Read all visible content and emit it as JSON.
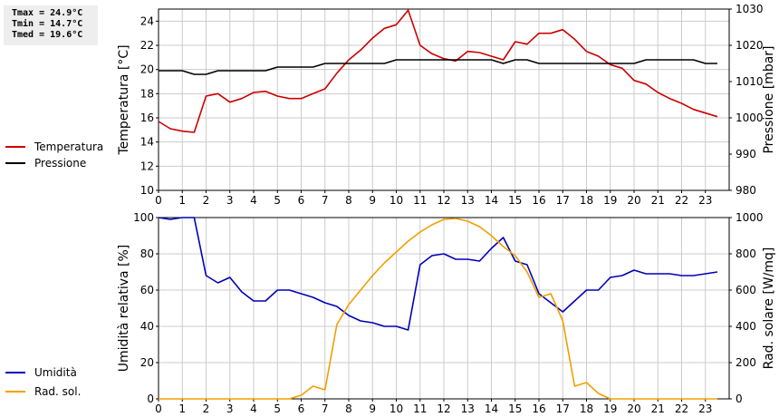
{
  "stats": {
    "tmax": "Tmax = 24.9°C",
    "tmin": "Tmin = 14.7°C",
    "tmed": "Tmed = 19.6°C"
  },
  "colors": {
    "temperature": "#cc0000",
    "pressure": "#000000",
    "humidity": "#0000bb",
    "radiation": "#f0a000",
    "grid": "#cccccc"
  },
  "chart_data": [
    {
      "type": "line",
      "grid": true,
      "legend_position": "left",
      "x_ticks": [
        "0",
        "1",
        "2",
        "3",
        "4",
        "5",
        "6",
        "7",
        "8",
        "9",
        "10",
        "11",
        "12",
        "13",
        "14",
        "15",
        "16",
        "17",
        "18",
        "19",
        "20",
        "21",
        "22",
        "23"
      ],
      "xlim": [
        0,
        24
      ],
      "ylabel": "Temperatura [°C]",
      "ylim": [
        10,
        25
      ],
      "y_ticks": [
        "10",
        "12",
        "14",
        "16",
        "18",
        "20",
        "22",
        "24"
      ],
      "y2label": "Pressione [mbar]",
      "y2lim": [
        980,
        1030
      ],
      "y2_ticks": [
        "980",
        "990",
        "1000",
        "1010",
        "1020",
        "1030"
      ],
      "series": [
        {
          "name": "Temperatura",
          "axis": "left",
          "x": [
            0,
            0.5,
            1,
            1.5,
            2,
            2.5,
            3,
            3.5,
            4,
            4.5,
            5,
            5.5,
            6,
            6.5,
            7,
            7.5,
            8,
            8.5,
            9,
            9.5,
            10,
            10.5,
            11,
            11.5,
            12,
            12.5,
            13,
            13.5,
            14,
            14.5,
            15,
            15.5,
            16,
            16.5,
            17,
            17.5,
            18,
            18.5,
            19,
            19.5,
            20,
            20.5,
            21,
            21.5,
            22,
            22.5,
            23,
            23.5
          ],
          "values": [
            15.7,
            15.1,
            14.9,
            14.8,
            17.8,
            18.0,
            17.3,
            17.6,
            18.1,
            18.2,
            17.8,
            17.6,
            17.6,
            18.0,
            18.4,
            19.7,
            20.8,
            21.6,
            22.6,
            23.4,
            23.7,
            24.9,
            22.0,
            21.3,
            20.9,
            20.7,
            21.5,
            21.4,
            21.1,
            20.8,
            22.3,
            22.1,
            23.0,
            23.0,
            23.3,
            22.5,
            21.5,
            21.1,
            20.4,
            20.1,
            19.1,
            18.8,
            18.1,
            17.6,
            17.2,
            16.7,
            16.4,
            16.1
          ]
        },
        {
          "name": "Pressione",
          "axis": "right",
          "x": [
            0,
            1,
            1.5,
            2,
            2.5,
            3,
            4,
            4.5,
            5,
            6,
            6.5,
            7,
            8,
            9,
            9.5,
            10,
            11,
            12,
            13,
            14,
            14.5,
            15,
            15.5,
            16,
            17,
            18,
            19,
            20,
            20.5,
            21,
            22,
            22.5,
            23,
            23.5
          ],
          "values": [
            1013,
            1013,
            1012,
            1012,
            1013,
            1013,
            1013,
            1013,
            1014,
            1014,
            1014,
            1015,
            1015,
            1015,
            1015,
            1016,
            1016,
            1016,
            1016,
            1016,
            1015,
            1016,
            1016,
            1015,
            1015,
            1015,
            1015,
            1015,
            1016,
            1016,
            1016,
            1016,
            1015,
            1015
          ]
        }
      ]
    },
    {
      "type": "line",
      "grid": true,
      "legend_position": "left",
      "x_ticks": [
        "0",
        "1",
        "2",
        "3",
        "4",
        "5",
        "6",
        "7",
        "8",
        "9",
        "10",
        "11",
        "12",
        "13",
        "14",
        "15",
        "16",
        "17",
        "18",
        "19",
        "20",
        "21",
        "22",
        "23"
      ],
      "xlim": [
        0,
        24
      ],
      "ylabel": "Umidità relativa [%]",
      "ylim": [
        0,
        100
      ],
      "y_ticks": [
        "0",
        "20",
        "40",
        "60",
        "80",
        "100"
      ],
      "y2label": "Rad. solare [W/mq]",
      "y2lim": [
        0,
        1000
      ],
      "y2_ticks": [
        "0",
        "200",
        "400",
        "600",
        "800",
        "1000"
      ],
      "series": [
        {
          "name": "Umidità",
          "axis": "left",
          "x": [
            0,
            0.5,
            1,
            1.5,
            2,
            2.5,
            3,
            3.5,
            4,
            4.5,
            5,
            5.5,
            6,
            6.5,
            7,
            7.5,
            8,
            8.5,
            9,
            9.5,
            10,
            10.5,
            11,
            11.5,
            12,
            12.5,
            13,
            13.5,
            14,
            14.5,
            15,
            15.5,
            16,
            16.5,
            17,
            17.5,
            18,
            18.5,
            19,
            19.5,
            20,
            20.5,
            21,
            21.5,
            22,
            22.5,
            23,
            23.5
          ],
          "values": [
            100,
            99,
            100,
            100,
            68,
            64,
            67,
            59,
            54,
            54,
            60,
            60,
            58,
            56,
            53,
            51,
            46,
            43,
            42,
            40,
            40,
            38,
            74,
            79,
            80,
            77,
            77,
            76,
            83,
            89,
            76,
            74,
            58,
            53,
            48,
            54,
            60,
            60,
            67,
            68,
            71,
            69,
            69,
            69,
            68,
            68,
            69,
            70
          ]
        },
        {
          "name": "Rad. sol.",
          "axis": "right",
          "x": [
            0,
            1,
            2,
            3,
            4,
            5,
            5.5,
            6,
            6.5,
            7,
            7.5,
            8,
            8.5,
            9,
            9.5,
            10,
            10.5,
            11,
            11.5,
            12,
            12.5,
            13,
            13.5,
            14,
            14.5,
            15,
            15.5,
            16,
            16.5,
            17,
            17.5,
            18,
            18.5,
            19,
            20,
            21,
            22,
            23,
            23.5
          ],
          "values": [
            0,
            0,
            0,
            0,
            0,
            0,
            0,
            20,
            70,
            50,
            410,
            520,
            600,
            680,
            750,
            810,
            870,
            920,
            960,
            990,
            995,
            980,
            950,
            900,
            840,
            790,
            700,
            560,
            580,
            430,
            70,
            90,
            30,
            0,
            0,
            0,
            0,
            0,
            0
          ]
        }
      ]
    }
  ]
}
